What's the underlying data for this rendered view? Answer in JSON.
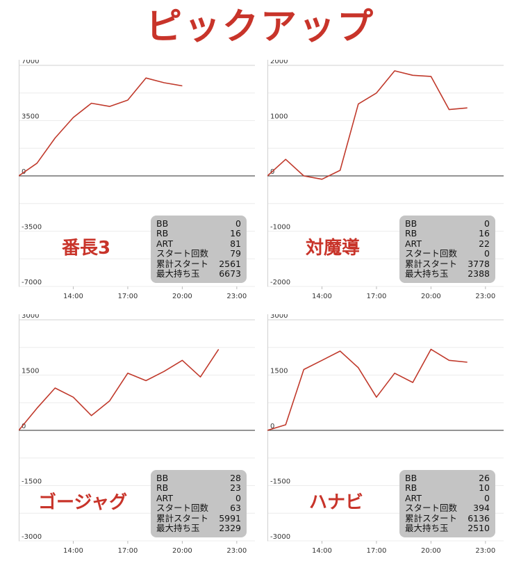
{
  "page": {
    "title": "ピックアップ"
  },
  "chart_data": [
    {
      "type": "line",
      "name_label": "番長3",
      "x_ticks": [
        "14:00",
        "17:00",
        "20:00",
        "23:00"
      ],
      "x_range": [
        "11:00",
        "24:00"
      ],
      "y_ticks": [
        7000,
        3500,
        0,
        -3500,
        -7000
      ],
      "ylim": [
        -7000,
        7000
      ],
      "series": [
        {
          "color": "#c0392b",
          "x": [
            "11:00",
            "12:00",
            "13:00",
            "14:00",
            "15:00",
            "16:00",
            "17:00",
            "18:00",
            "19:00",
            "20:00"
          ],
          "values": [
            0,
            800,
            2400,
            3700,
            4600,
            4400,
            4800,
            6200,
            5900,
            5700
          ]
        }
      ],
      "stats": [
        {
          "label": "BB",
          "value": "0"
        },
        {
          "label": "RB",
          "value": "16"
        },
        {
          "label": "ART",
          "value": "81"
        },
        {
          "label": "スタート回数",
          "value": "79"
        },
        {
          "label": "累計スタート",
          "value": "2561"
        },
        {
          "label": "最大持ち玉",
          "value": "6673"
        }
      ]
    },
    {
      "type": "line",
      "name_label": "対魔導",
      "x_ticks": [
        "14:00",
        "17:00",
        "20:00",
        "23:00"
      ],
      "x_range": [
        "11:00",
        "24:00"
      ],
      "y_ticks": [
        2000,
        1000,
        0,
        -1000,
        -2000
      ],
      "ylim": [
        -2000,
        2000
      ],
      "series": [
        {
          "color": "#c0392b",
          "x": [
            "11:00",
            "12:00",
            "13:00",
            "14:00",
            "15:00",
            "16:00",
            "17:00",
            "18:00",
            "19:00",
            "20:00",
            "21:00",
            "22:00"
          ],
          "values": [
            0,
            300,
            0,
            -60,
            100,
            1300,
            1500,
            1900,
            1820,
            1800,
            1200,
            1230
          ]
        }
      ],
      "stats": [
        {
          "label": "BB",
          "value": "0"
        },
        {
          "label": "RB",
          "value": "16"
        },
        {
          "label": "ART",
          "value": "22"
        },
        {
          "label": "スタート回数",
          "value": "0"
        },
        {
          "label": "累計スタート",
          "value": "3778"
        },
        {
          "label": "最大持ち玉",
          "value": "2388"
        }
      ]
    },
    {
      "type": "line",
      "name_label": "ゴージャグ",
      "x_ticks": [
        "14:00",
        "17:00",
        "20:00",
        "23:00"
      ],
      "x_range": [
        "11:00",
        "24:00"
      ],
      "y_ticks": [
        3000,
        1500,
        0,
        -1500,
        -3000
      ],
      "ylim": [
        -3000,
        3000
      ],
      "series": [
        {
          "color": "#c0392b",
          "x": [
            "11:00",
            "12:00",
            "13:00",
            "14:00",
            "15:00",
            "16:00",
            "17:00",
            "18:00",
            "19:00",
            "20:00",
            "21:00",
            "22:00"
          ],
          "values": [
            0,
            600,
            1150,
            900,
            400,
            800,
            1550,
            1350,
            1600,
            1900,
            1450,
            2200
          ]
        }
      ],
      "stats": [
        {
          "label": "BB",
          "value": "28"
        },
        {
          "label": "RB",
          "value": "23"
        },
        {
          "label": "ART",
          "value": "0"
        },
        {
          "label": "スタート回数",
          "value": "63"
        },
        {
          "label": "累計スタート",
          "value": "5991"
        },
        {
          "label": "最大持ち玉",
          "value": "2329"
        }
      ]
    },
    {
      "type": "line",
      "name_label": "ハナビ",
      "x_ticks": [
        "14:00",
        "17:00",
        "20:00",
        "23:00"
      ],
      "x_range": [
        "11:00",
        "24:00"
      ],
      "y_ticks": [
        3000,
        1500,
        0,
        -1500,
        -3000
      ],
      "ylim": [
        -3000,
        3000
      ],
      "series": [
        {
          "color": "#c0392b",
          "x": [
            "11:00",
            "12:00",
            "13:00",
            "14:00",
            "15:00",
            "16:00",
            "17:00",
            "18:00",
            "19:00",
            "20:00",
            "21:00",
            "22:00"
          ],
          "values": [
            0,
            150,
            1650,
            1900,
            2150,
            1700,
            900,
            1550,
            1300,
            2200,
            1900,
            1850
          ]
        }
      ],
      "stats": [
        {
          "label": "BB",
          "value": "26"
        },
        {
          "label": "RB",
          "value": "10"
        },
        {
          "label": "ART",
          "value": "0"
        },
        {
          "label": "スタート回数",
          "value": "394"
        },
        {
          "label": "累計スタート",
          "value": "6136"
        },
        {
          "label": "最大持ち玉",
          "value": "2510"
        }
      ]
    }
  ]
}
